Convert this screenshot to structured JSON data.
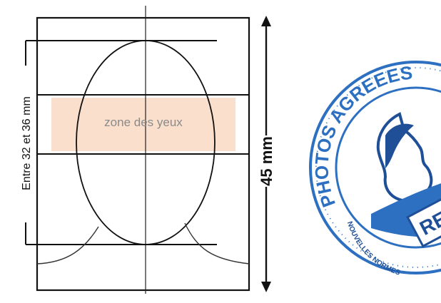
{
  "diagram": {
    "eye_zone_label": "zone des yeux",
    "height_range_label": "Entre 32 et 36 mm",
    "total_height_label": "45 mm",
    "eye_zone_color": "#f9dfcc",
    "line_color": "#111111"
  },
  "seal": {
    "arc_text": "PHOTOS AGREEES",
    "bottom_text": "NOUVELLES NORMES",
    "badge_text": "RE",
    "primary_color": "#2d6fc0",
    "dark_color": "#1f4f96"
  }
}
